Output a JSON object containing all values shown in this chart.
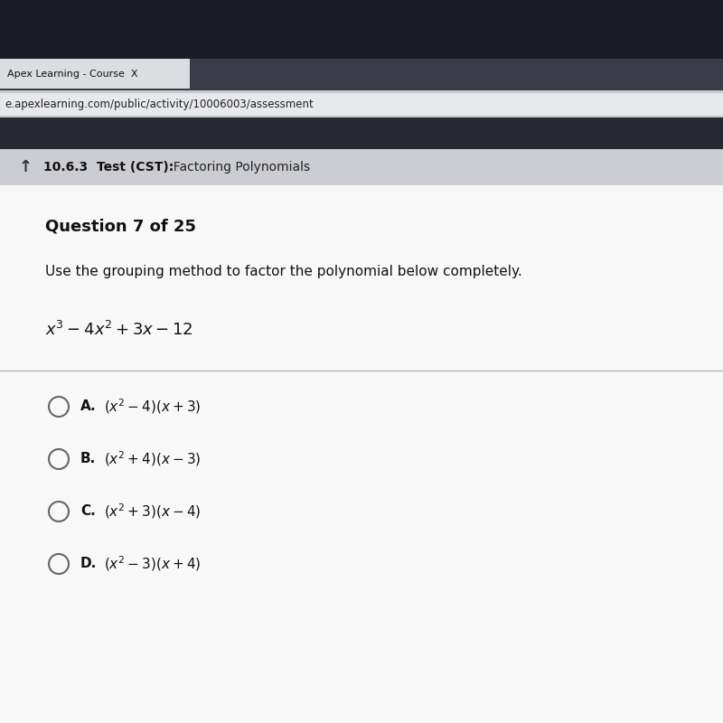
{
  "browser_tab_text": "Apex Learning - Course  X",
  "url_text": "e.apexlearning.com/public/activity/10006003/assessment",
  "nav_bar_text_bold": "10.6.3  Test (CST):",
  "nav_bar_text_normal": "  Factoring Polynomials",
  "question_header": "Question 7 of 25",
  "question_body": "Use the grouping method to factor the polynomial below completely.",
  "polynomial_latex": "$x^3 - 4x^2 + 3x - 12$",
  "option_labels": [
    "A.",
    "B.",
    "C.",
    "D."
  ],
  "option_expressions": [
    "$(x^2 - 4)(x + 3)$",
    "$(x^2 + 4)(x - 3)$",
    "$(x^2 + 3)(x - 4)$",
    "$(x^2 - 3)(x + 4)$"
  ],
  "bg_very_dark": "#1a1d26",
  "bg_tab_row": "#3a3d48",
  "bg_tab_active": "#dcdde0",
  "bg_url_bar_area": "#c8cacd",
  "bg_url_input": "#e8e9eb",
  "bg_dark_toolbar": "#252830",
  "bg_nav_bar": "#cccdd2",
  "bg_content": "#f0f1f3",
  "text_dark": "#111111",
  "text_gray": "#333333",
  "text_url": "#222222",
  "circle_edge": "#666666",
  "separator": "#b0b2b7",
  "nav_text_bold_color": "#111111",
  "nav_text_normal_color": "#222222"
}
